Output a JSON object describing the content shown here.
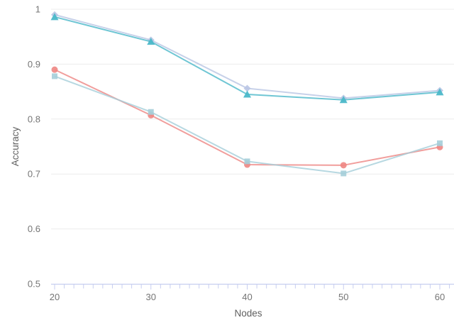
{
  "chart_data": {
    "type": "line",
    "title": "",
    "xlabel": "Nodes",
    "ylabel": "Accuracy",
    "x": [
      20,
      30,
      40,
      50,
      60
    ],
    "xlim": [
      19.6,
      61.5
    ],
    "ylim": [
      0.5,
      1.0
    ],
    "x_ticks": [
      20,
      30,
      40,
      50,
      60
    ],
    "x_minor_tick_step": 1,
    "y_ticks": [
      "1",
      "0.9",
      "0.8",
      "0.7",
      "0.6",
      "0.5"
    ],
    "y_tick_values": [
      1.0,
      0.9,
      0.8,
      0.7,
      0.6,
      0.5
    ],
    "grid": "horizontal-only",
    "legend": "none",
    "series": [
      {
        "name": "diamond-series",
        "marker": "diamond",
        "color": "#b9c5e4",
        "values": [
          0.99,
          0.944,
          0.856,
          0.838,
          0.852
        ]
      },
      {
        "name": "triangle-series",
        "marker": "triangle",
        "color": "#4bb8c9",
        "values": [
          0.986,
          0.941,
          0.845,
          0.835,
          0.849
        ]
      },
      {
        "name": "circle-series",
        "marker": "circle",
        "color": "#ee8683",
        "values": [
          0.89,
          0.807,
          0.717,
          0.716,
          0.749
        ]
      },
      {
        "name": "square-series",
        "marker": "square",
        "color": "#a5ced9",
        "values": [
          0.878,
          0.813,
          0.723,
          0.701,
          0.756
        ]
      }
    ],
    "colors": {
      "gridline": "#ececec",
      "axis": "#c7cef0",
      "tick_label": "#757575",
      "axis_label": "#5f5f5f",
      "background": "#ffffff"
    }
  }
}
